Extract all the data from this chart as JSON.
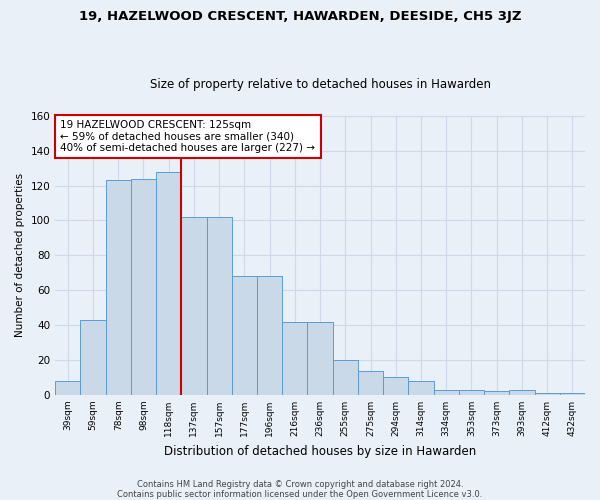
{
  "title": "19, HAZELWOOD CRESCENT, HAWARDEN, DEESIDE, CH5 3JZ",
  "subtitle": "Size of property relative to detached houses in Hawarden",
  "xlabel": "Distribution of detached houses by size in Hawarden",
  "ylabel": "Number of detached properties",
  "footnote1": "Contains HM Land Registry data © Crown copyright and database right 2024.",
  "footnote2": "Contains public sector information licensed under the Open Government Licence v3.0.",
  "bar_labels": [
    "39sqm",
    "59sqm",
    "78sqm",
    "98sqm",
    "118sqm",
    "137sqm",
    "157sqm",
    "177sqm",
    "196sqm",
    "216sqm",
    "236sqm",
    "255sqm",
    "275sqm",
    "294sqm",
    "314sqm",
    "334sqm",
    "353sqm",
    "373sqm",
    "393sqm",
    "412sqm",
    "432sqm"
  ],
  "bar_values": [
    8,
    43,
    123,
    124,
    128,
    102,
    102,
    68,
    68,
    42,
    42,
    20,
    14,
    10,
    8,
    3,
    3,
    2,
    3,
    1,
    1
  ],
  "bar_color": "#c9d9e8",
  "bar_edge_color": "#5b9bd5",
  "vline_index": 4,
  "vline_color": "#cc0000",
  "annotation_title": "19 HAZELWOOD CRESCENT: 125sqm",
  "annotation_line1": "← 59% of detached houses are smaller (340)",
  "annotation_line2": "40% of semi-detached houses are larger (227) →",
  "annotation_box_color": "#ffffff",
  "annotation_border_color": "#cc0000",
  "ylim": [
    0,
    160
  ],
  "yticks": [
    0,
    20,
    40,
    60,
    80,
    100,
    120,
    140,
    160
  ],
  "grid_color": "#cdd8e8",
  "background_color": "#eaf0f8",
  "title_fontsize": 9.5,
  "subtitle_fontsize": 8.5,
  "footnote_fontsize": 6.0
}
